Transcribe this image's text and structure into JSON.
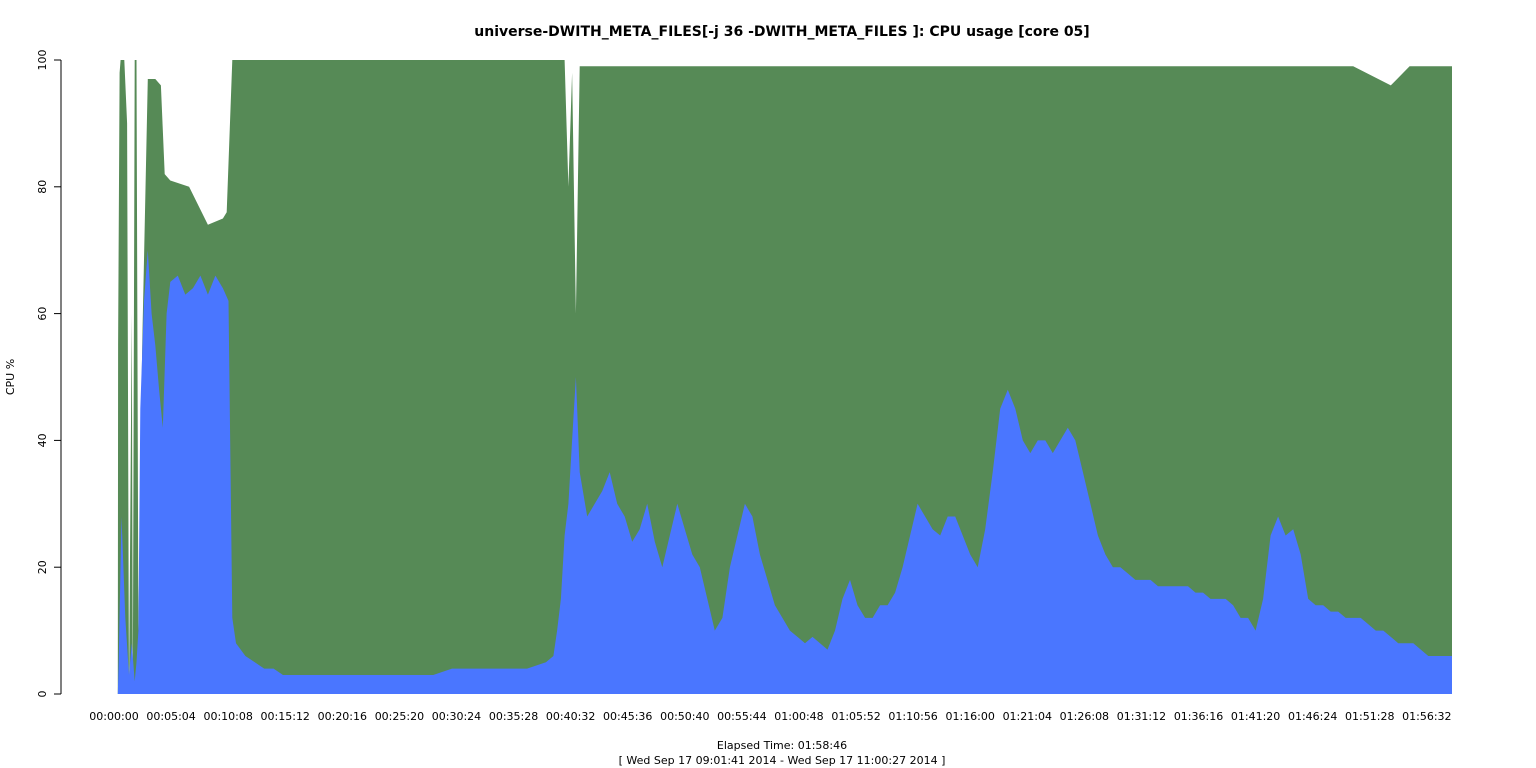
{
  "chart_data": {
    "type": "area",
    "title": "universe-DWITH_META_FILES[-j 36 -DWITH_META_FILES ]: CPU usage [core 05]",
    "ylabel": "CPU %",
    "xlabel": "Elapsed Time: 01:58:46",
    "xlabel_sub": "[ Wed Sep 17 09:01:41 2014 - Wed Sep 17 11:00:27 2014 ]",
    "x_unit": "seconds elapsed",
    "xlim": [
      0,
      7126
    ],
    "ylim": [
      0,
      100
    ],
    "grid": false,
    "legend": "none",
    "y_ticks": [
      0,
      20,
      40,
      60,
      80,
      100
    ],
    "y_tick_labels": [
      "0",
      "20",
      "40",
      "60",
      "80",
      "100"
    ],
    "x_ticks": [
      0,
      304,
      608,
      912,
      1216,
      1520,
      1824,
      2128,
      2432,
      2736,
      3040,
      3344,
      3648,
      3952,
      4256,
      4560,
      4864,
      5168,
      5472,
      5776,
      6080,
      6384,
      6688,
      6992
    ],
    "x_tick_labels": [
      "00:00:00",
      "00:05:04",
      "00:10:08",
      "00:15:12",
      "00:20:16",
      "00:25:20",
      "00:30:24",
      "00:35:28",
      "00:40:32",
      "00:45:36",
      "00:50:40",
      "00:55:44",
      "01:00:48",
      "01:05:52",
      "01:10:56",
      "01:16:00",
      "01:21:04",
      "01:26:08",
      "01:31:12",
      "01:36:16",
      "01:41:20",
      "01:46:24",
      "01:51:28",
      "01:56:32"
    ],
    "series": [
      {
        "color": "#568a56",
        "points": [
          [
            0,
            0
          ],
          [
            20,
            0
          ],
          [
            22,
            55
          ],
          [
            30,
            98
          ],
          [
            35,
            100
          ],
          [
            55,
            100
          ],
          [
            70,
            90
          ],
          [
            80,
            0
          ],
          [
            95,
            60
          ],
          [
            100,
            0
          ],
          [
            110,
            100
          ],
          [
            120,
            100
          ],
          [
            130,
            10
          ],
          [
            150,
            55
          ],
          [
            180,
            97
          ],
          [
            220,
            97
          ],
          [
            250,
            96
          ],
          [
            270,
            82
          ],
          [
            300,
            81
          ],
          [
            400,
            80
          ],
          [
            500,
            74
          ],
          [
            580,
            75
          ],
          [
            600,
            76
          ],
          [
            630,
            100
          ],
          [
            900,
            100
          ],
          [
            1200,
            100
          ],
          [
            1500,
            100
          ],
          [
            1800,
            100
          ],
          [
            2100,
            100
          ],
          [
            2340,
            100
          ],
          [
            2400,
            100
          ],
          [
            2420,
            80
          ],
          [
            2440,
            98
          ],
          [
            2460,
            60
          ],
          [
            2480,
            99
          ],
          [
            2600,
            99
          ],
          [
            2800,
            99
          ],
          [
            3000,
            99
          ],
          [
            3200,
            99
          ],
          [
            3400,
            99
          ],
          [
            3600,
            99
          ],
          [
            3800,
            99
          ],
          [
            4000,
            99
          ],
          [
            4200,
            99
          ],
          [
            4400,
            99
          ],
          [
            4600,
            99
          ],
          [
            4800,
            99
          ],
          [
            5000,
            99
          ],
          [
            5200,
            99
          ],
          [
            5400,
            99
          ],
          [
            5600,
            99
          ],
          [
            5800,
            99
          ],
          [
            6000,
            99
          ],
          [
            6200,
            99
          ],
          [
            6400,
            99
          ],
          [
            6600,
            99
          ],
          [
            6800,
            96
          ],
          [
            6900,
            99
          ],
          [
            7000,
            99
          ],
          [
            7126,
            99
          ]
        ]
      },
      {
        "color": "#4a76ff",
        "points": [
          [
            0,
            0
          ],
          [
            20,
            0
          ],
          [
            25,
            5
          ],
          [
            40,
            28
          ],
          [
            60,
            12
          ],
          [
            80,
            3
          ],
          [
            95,
            8
          ],
          [
            110,
            2
          ],
          [
            120,
            5
          ],
          [
            130,
            10
          ],
          [
            140,
            45
          ],
          [
            160,
            62
          ],
          [
            180,
            70
          ],
          [
            200,
            60
          ],
          [
            220,
            55
          ],
          [
            240,
            48
          ],
          [
            260,
            42
          ],
          [
            280,
            60
          ],
          [
            300,
            65
          ],
          [
            340,
            66
          ],
          [
            380,
            63
          ],
          [
            420,
            64
          ],
          [
            460,
            66
          ],
          [
            500,
            63
          ],
          [
            540,
            66
          ],
          [
            580,
            64
          ],
          [
            610,
            62
          ],
          [
            630,
            12
          ],
          [
            650,
            8
          ],
          [
            700,
            6
          ],
          [
            750,
            5
          ],
          [
            800,
            4
          ],
          [
            850,
            4
          ],
          [
            900,
            3
          ],
          [
            1000,
            3
          ],
          [
            1100,
            3
          ],
          [
            1200,
            3
          ],
          [
            1300,
            3
          ],
          [
            1400,
            3
          ],
          [
            1500,
            3
          ],
          [
            1600,
            3
          ],
          [
            1700,
            3
          ],
          [
            1800,
            4
          ],
          [
            1900,
            4
          ],
          [
            2000,
            4
          ],
          [
            2100,
            4
          ],
          [
            2200,
            4
          ],
          [
            2300,
            5
          ],
          [
            2340,
            6
          ],
          [
            2360,
            10
          ],
          [
            2380,
            15
          ],
          [
            2400,
            25
          ],
          [
            2420,
            30
          ],
          [
            2440,
            40
          ],
          [
            2460,
            50
          ],
          [
            2480,
            35
          ],
          [
            2520,
            28
          ],
          [
            2560,
            30
          ],
          [
            2600,
            32
          ],
          [
            2640,
            35
          ],
          [
            2680,
            30
          ],
          [
            2720,
            28
          ],
          [
            2760,
            24
          ],
          [
            2800,
            26
          ],
          [
            2840,
            30
          ],
          [
            2880,
            24
          ],
          [
            2920,
            20
          ],
          [
            2960,
            25
          ],
          [
            3000,
            30
          ],
          [
            3040,
            26
          ],
          [
            3080,
            22
          ],
          [
            3120,
            20
          ],
          [
            3160,
            15
          ],
          [
            3200,
            10
          ],
          [
            3240,
            12
          ],
          [
            3280,
            20
          ],
          [
            3320,
            25
          ],
          [
            3360,
            30
          ],
          [
            3400,
            28
          ],
          [
            3440,
            22
          ],
          [
            3480,
            18
          ],
          [
            3520,
            14
          ],
          [
            3560,
            12
          ],
          [
            3600,
            10
          ],
          [
            3640,
            9
          ],
          [
            3680,
            8
          ],
          [
            3720,
            9
          ],
          [
            3760,
            8
          ],
          [
            3800,
            7
          ],
          [
            3840,
            10
          ],
          [
            3880,
            15
          ],
          [
            3920,
            18
          ],
          [
            3960,
            14
          ],
          [
            4000,
            12
          ],
          [
            4040,
            12
          ],
          [
            4080,
            14
          ],
          [
            4120,
            14
          ],
          [
            4160,
            16
          ],
          [
            4200,
            20
          ],
          [
            4240,
            25
          ],
          [
            4280,
            30
          ],
          [
            4320,
            28
          ],
          [
            4360,
            26
          ],
          [
            4400,
            25
          ],
          [
            4440,
            28
          ],
          [
            4480,
            28
          ],
          [
            4520,
            25
          ],
          [
            4560,
            22
          ],
          [
            4600,
            20
          ],
          [
            4640,
            26
          ],
          [
            4680,
            35
          ],
          [
            4720,
            45
          ],
          [
            4760,
            48
          ],
          [
            4800,
            45
          ],
          [
            4840,
            40
          ],
          [
            4880,
            38
          ],
          [
            4920,
            40
          ],
          [
            4960,
            40
          ],
          [
            5000,
            38
          ],
          [
            5040,
            40
          ],
          [
            5080,
            42
          ],
          [
            5120,
            40
          ],
          [
            5160,
            35
          ],
          [
            5200,
            30
          ],
          [
            5240,
            25
          ],
          [
            5280,
            22
          ],
          [
            5320,
            20
          ],
          [
            5360,
            20
          ],
          [
            5400,
            19
          ],
          [
            5440,
            18
          ],
          [
            5480,
            18
          ],
          [
            5520,
            18
          ],
          [
            5560,
            17
          ],
          [
            5600,
            17
          ],
          [
            5640,
            17
          ],
          [
            5680,
            17
          ],
          [
            5720,
            17
          ],
          [
            5760,
            16
          ],
          [
            5800,
            16
          ],
          [
            5840,
            15
          ],
          [
            5880,
            15
          ],
          [
            5920,
            15
          ],
          [
            5960,
            14
          ],
          [
            6000,
            12
          ],
          [
            6040,
            12
          ],
          [
            6080,
            10
          ],
          [
            6120,
            15
          ],
          [
            6160,
            25
          ],
          [
            6200,
            28
          ],
          [
            6240,
            25
          ],
          [
            6280,
            26
          ],
          [
            6320,
            22
          ],
          [
            6360,
            15
          ],
          [
            6400,
            14
          ],
          [
            6440,
            14
          ],
          [
            6480,
            13
          ],
          [
            6520,
            13
          ],
          [
            6560,
            12
          ],
          [
            6600,
            12
          ],
          [
            6640,
            12
          ],
          [
            6680,
            11
          ],
          [
            6720,
            10
          ],
          [
            6760,
            10
          ],
          [
            6800,
            9
          ],
          [
            6840,
            8
          ],
          [
            6880,
            8
          ],
          [
            6920,
            8
          ],
          [
            6960,
            7
          ],
          [
            7000,
            6
          ],
          [
            7050,
            6
          ],
          [
            7100,
            6
          ],
          [
            7126,
            6
          ]
        ]
      }
    ]
  }
}
